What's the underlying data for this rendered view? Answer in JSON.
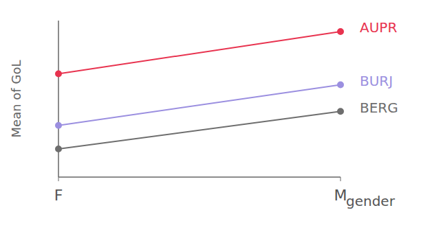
{
  "chart_data": {
    "type": "line",
    "x_label": "gender",
    "y_label": "Mean of GoL",
    "categories": [
      "F",
      "M"
    ],
    "ylim": [
      0,
      10
    ],
    "tick_labels": "x",
    "grid": false,
    "series": [
      {
        "name": "AUPR",
        "color": "#e8334f",
        "values": [
          6.6,
          9.3
        ],
        "marker": "circle"
      },
      {
        "name": "BURJ",
        "color": "#9b8fe0",
        "values": [
          3.3,
          5.9
        ],
        "marker": "circle"
      },
      {
        "name": "BERG",
        "color": "#6e6e6e",
        "values": [
          1.8,
          4.2
        ],
        "marker": "circle"
      }
    ]
  }
}
